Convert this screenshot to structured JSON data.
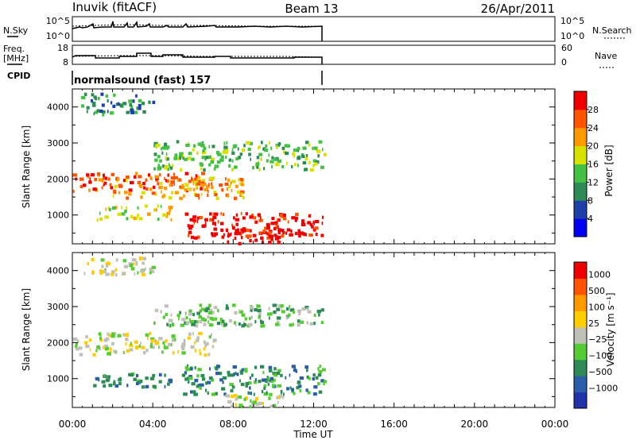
{
  "header": {
    "title": "Inuvik (fitACF)",
    "beam": "Beam 13",
    "date": "26/Apr/2011"
  },
  "aux_panels": {
    "nsky_label": "N.Sky",
    "nsearch_label": "N.Search",
    "noise_ticks": [
      "10^5",
      "10^0"
    ],
    "freq_label_1": "Freq.",
    "freq_label_2": "[MHz]",
    "freq_ticks": [
      "18",
      "8"
    ],
    "nave_label": "Nave",
    "nave_ticks": [
      "60",
      "0"
    ],
    "cpid_label": "CPID",
    "cpid_text": "normalsound (fast) 157"
  },
  "chart_data": [
    {
      "type": "heatmap",
      "panel": "power",
      "ylabel": "Slant Range [km]",
      "xlabel": "Time UT",
      "x_ticks": [
        "00:00",
        "04:00",
        "08:00",
        "12:00",
        "16:00",
        "20:00",
        "00:00"
      ],
      "x_range_hours": [
        0,
        24
      ],
      "data_end_hours": 12.5,
      "y_ticks": [
        1000,
        2000,
        3000,
        4000
      ],
      "ylim": [
        200,
        4500
      ],
      "colorbar": {
        "label": "Power [dB]",
        "ticks": [
          "4",
          "8",
          "12",
          "16",
          "20",
          "24",
          "28"
        ],
        "colors": [
          "#0000ee",
          "#1f3fa8",
          "#2e8b57",
          "#44c044",
          "#d8e000",
          "#ff9900",
          "#ff5500",
          "#ee0000"
        ]
      },
      "bands": [
        {
          "t0": 0.0,
          "t1": 6.5,
          "r0": 1700,
          "r1": 2200,
          "level": 6
        },
        {
          "t0": 2.0,
          "t1": 8.5,
          "r0": 1500,
          "r1": 2100,
          "level": 5
        },
        {
          "t0": 5.5,
          "t1": 12.5,
          "r0": 400,
          "r1": 1100,
          "level": 7
        },
        {
          "t0": 7.5,
          "t1": 10.5,
          "r0": 250,
          "r1": 700,
          "level": 7
        },
        {
          "t0": 1.0,
          "t1": 5.0,
          "r0": 900,
          "r1": 1300,
          "level": 4
        },
        {
          "t0": 0.3,
          "t1": 4.0,
          "r0": 3800,
          "r1": 4400,
          "level": 2
        },
        {
          "t0": 4.0,
          "t1": 12.5,
          "r0": 2300,
          "r1": 3100,
          "level": 3
        }
      ]
    },
    {
      "type": "heatmap",
      "panel": "velocity",
      "ylabel": "Slant Range [km]",
      "xlabel": "Time UT",
      "x_ticks": [
        "00:00",
        "04:00",
        "08:00",
        "12:00",
        "16:00",
        "20:00",
        "00:00"
      ],
      "x_range_hours": [
        0,
        24
      ],
      "data_end_hours": 12.5,
      "y_ticks": [
        1000,
        2000,
        3000,
        4000
      ],
      "ylim": [
        200,
        4500
      ],
      "colorbar": {
        "label": "Velocity  [m s⁻¹]",
        "ticks": [
          "1000",
          "500",
          "100",
          "25",
          "−25",
          "−100",
          "−500",
          "−1000"
        ],
        "colors": [
          "#2233aa",
          "#2a5ea8",
          "#2e8b57",
          "#55cc33",
          "#c0c0b8",
          "#ffcc00",
          "#ff9900",
          "#ff5500",
          "#ee0000"
        ]
      },
      "bands": [
        {
          "t0": 0.0,
          "t1": 7.0,
          "r0": 1700,
          "r1": 2300,
          "level": 4
        },
        {
          "t0": 5.5,
          "t1": 12.5,
          "r0": 600,
          "r1": 1400,
          "level": 2
        },
        {
          "t0": 1.0,
          "t1": 5.5,
          "r0": 800,
          "r1": 1200,
          "level": 2
        },
        {
          "t0": 7.5,
          "t1": 10.5,
          "r0": 250,
          "r1": 600,
          "level": 4
        },
        {
          "t0": 0.5,
          "t1": 4.0,
          "r0": 3900,
          "r1": 4400,
          "level": 4
        },
        {
          "t0": 4.0,
          "t1": 12.5,
          "r0": 2500,
          "r1": 3100,
          "level": 3
        }
      ]
    }
  ]
}
